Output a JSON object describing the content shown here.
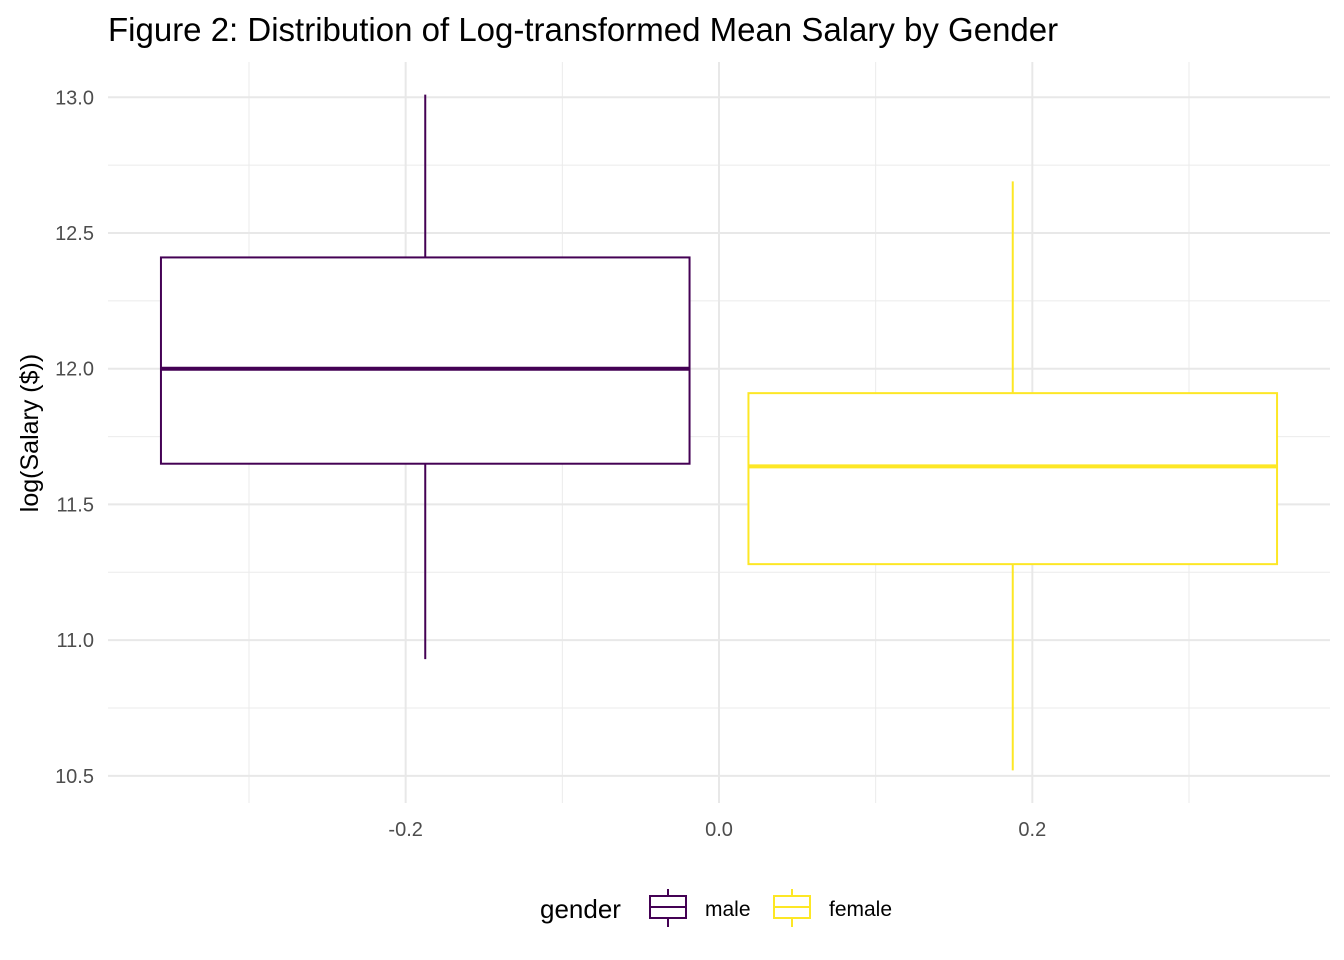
{
  "chart_data": {
    "type": "boxplot",
    "title": "Figure 2: Distribution of Log-transformed Mean Salary by Gender",
    "xlabel": "",
    "ylabel": "log(Salary ($))",
    "xlim": [
      -0.39,
      0.39
    ],
    "ylim": [
      10.4,
      13.13
    ],
    "x_ticks": [
      -0.2,
      0.0,
      0.2
    ],
    "x_tick_labels": [
      "-0.2",
      "0.0",
      "0.2"
    ],
    "x_minor_ticks": [
      -0.3,
      -0.1,
      0.1,
      0.3
    ],
    "y_ticks": [
      10.5,
      11.0,
      11.5,
      12.0,
      12.5,
      13.0
    ],
    "y_tick_labels": [
      "10.5",
      "11.0",
      "11.5",
      "12.0",
      "12.5",
      "13.0"
    ],
    "y_minor_ticks": [
      10.75,
      11.25,
      11.75,
      12.25,
      12.75
    ],
    "grid": true,
    "legend": {
      "title": "gender",
      "position": "bottom",
      "entries": [
        {
          "label": "male",
          "color": "#440154"
        },
        {
          "label": "female",
          "color": "#FDE725"
        }
      ]
    },
    "series": [
      {
        "name": "male",
        "color": "#440154",
        "x_center": -0.1875,
        "x_left": -0.3562,
        "x_right": -0.0188,
        "whisker_low": 10.93,
        "q1": 11.65,
        "median": 12.0,
        "q3": 12.41,
        "whisker_high": 13.01
      },
      {
        "name": "female",
        "color": "#FDE725",
        "x_center": 0.1875,
        "x_left": 0.0188,
        "x_right": 0.3562,
        "whisker_low": 10.52,
        "q1": 11.28,
        "median": 11.64,
        "q3": 11.91,
        "whisker_high": 12.69
      }
    ]
  }
}
